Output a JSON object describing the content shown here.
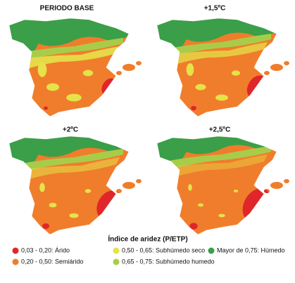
{
  "panels": [
    {
      "title": "PERIODO BASE"
    },
    {
      "title": "+1,5ºC"
    },
    {
      "title": "+2ºC"
    },
    {
      "title": "+2,5ºC"
    }
  ],
  "legend": {
    "title": "Índice de aridez (P/ETP)",
    "items": [
      {
        "label": "0,03 - 0,20: Árido",
        "color": "#e0262a"
      },
      {
        "label": "0,20 - 0,50: Semiárido",
        "color": "#f07d2b"
      },
      {
        "label": "0,50 - 0,65: Subhúmedo seco",
        "color": "#e6e24a"
      },
      {
        "label": "0,65 - 0,75: Subhúmedo humedo",
        "color": "#a8cc4a"
      },
      {
        "label": "Mayor de 0,75: Húmedo",
        "color": "#3a9f48"
      }
    ]
  }
}
